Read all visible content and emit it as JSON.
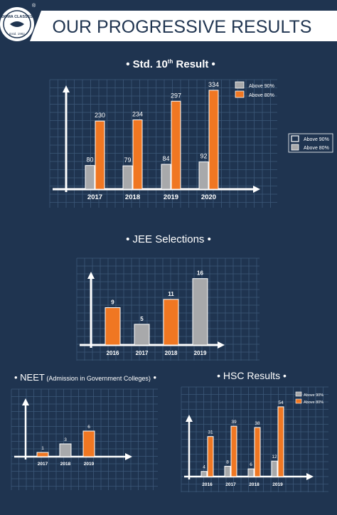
{
  "header": {
    "title": "OUR PROGRESSIVE RESULTS",
    "logo_name": "BOMA CLASSES",
    "logo_est": "Estd. 1982",
    "logo_mark": "®"
  },
  "colors": {
    "background": "#1f3450",
    "grey_bar": "#a8a9ab",
    "orange_bar": "#f07722",
    "grid": "#3d5878",
    "banner": "#ffffff",
    "title_text": "#1f3450"
  },
  "chart_data": [
    {
      "type": "bar",
      "title": "Std. 10",
      "title_sup": "th",
      "title_suffix": " Result",
      "categories": [
        "2017",
        "2018",
        "2019",
        "2020"
      ],
      "series": [
        {
          "name": "Above 90%",
          "values": [
            80,
            79,
            84,
            92
          ]
        },
        {
          "name": "Above 80%",
          "values": [
            230,
            234,
            297,
            334
          ]
        }
      ],
      "side_legend": [
        "Above 90%",
        "Above 80%"
      ],
      "ylim": [
        0,
        360
      ]
    },
    {
      "type": "bar",
      "title": "JEE Selections",
      "categories": [
        "2016",
        "2017",
        "2018",
        "2019"
      ],
      "values": [
        9,
        5,
        11,
        16
      ],
      "ylim": [
        0,
        18
      ]
    },
    {
      "type": "bar",
      "title": "NEET",
      "title_suffix": " (Admission in Government Colleges)",
      "categories": [
        "2017",
        "2018",
        "2019"
      ],
      "values": [
        1,
        3,
        6
      ],
      "ylim": [
        0,
        12
      ]
    },
    {
      "type": "bar",
      "title": "HSC Results",
      "categories": [
        "2016",
        "2017",
        "2018",
        "2019"
      ],
      "series": [
        {
          "name": "Above 90%",
          "values": [
            4,
            8,
            6,
            12
          ]
        },
        {
          "name": "Above 80%",
          "values": [
            31,
            39,
            38,
            54
          ]
        }
      ],
      "ylim": [
        0,
        60
      ]
    }
  ]
}
